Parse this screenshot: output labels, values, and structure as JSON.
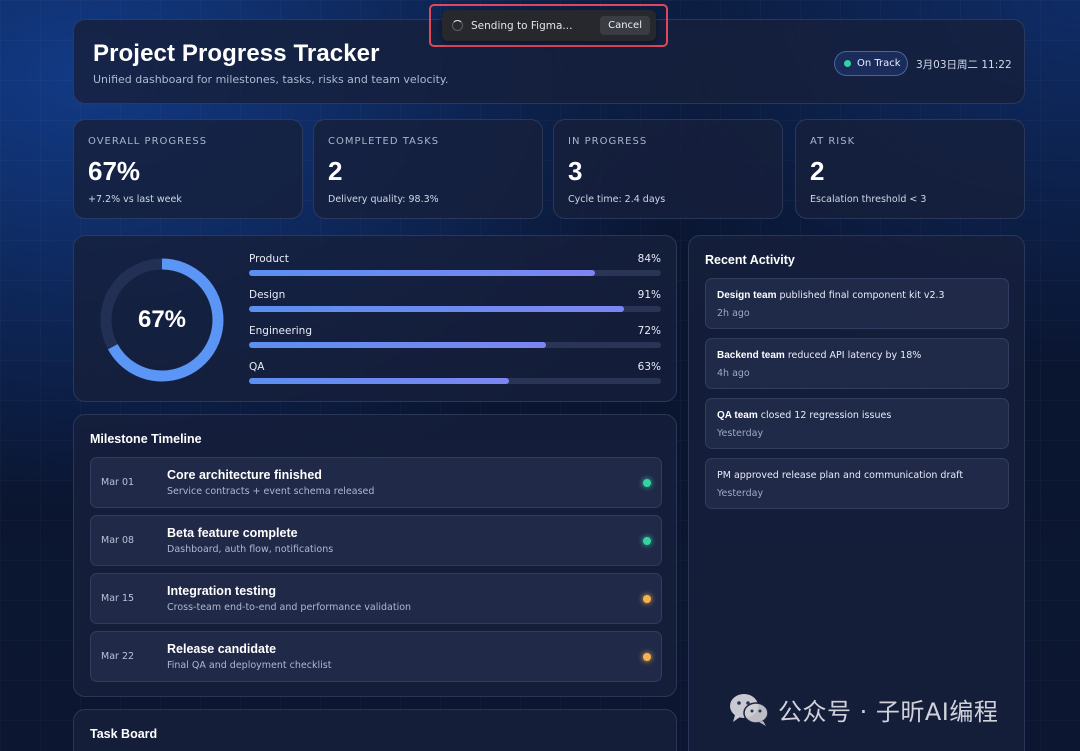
{
  "figma_toast": {
    "message": "Sending to Figma...",
    "cancel_label": "Cancel"
  },
  "header": {
    "title": "Project Progress Tracker",
    "subtitle": "Unified dashboard for milestones, tasks, risks and team velocity.",
    "status": "On Track",
    "datetime": "3月03日周二 11:22"
  },
  "stats": [
    {
      "label": "OVERALL PROGRESS",
      "value": "67%",
      "note": "+7.2% vs last week"
    },
    {
      "label": "COMPLETED TASKS",
      "value": "2",
      "note": "Delivery quality: 98.3%"
    },
    {
      "label": "IN PROGRESS",
      "value": "3",
      "note": "Cycle time: 2.4 days"
    },
    {
      "label": "AT RISK",
      "value": "2",
      "note": "Escalation threshold < 3"
    }
  ],
  "overall": {
    "label": "67%",
    "percent": 67
  },
  "teams": [
    {
      "name": "Product",
      "pct_label": "84%",
      "percent": 84
    },
    {
      "name": "Design",
      "pct_label": "91%",
      "percent": 91
    },
    {
      "name": "Engineering",
      "pct_label": "72%",
      "percent": 72
    },
    {
      "name": "QA",
      "pct_label": "63%",
      "percent": 63
    }
  ],
  "milestones": {
    "title": "Milestone Timeline",
    "items": [
      {
        "date": "Mar 01",
        "name": "Core architecture finished",
        "desc": "Service contracts + event schema released",
        "status_color": "#34d3a3"
      },
      {
        "date": "Mar 08",
        "name": "Beta feature complete",
        "desc": "Dashboard, auth flow, notifications",
        "status_color": "#34d3a3"
      },
      {
        "date": "Mar 15",
        "name": "Integration testing",
        "desc": "Cross-team end-to-end and performance validation",
        "status_color": "#f5b34e"
      },
      {
        "date": "Mar 22",
        "name": "Release candidate",
        "desc": "Final QA and deployment checklist",
        "status_color": "#f5b34e"
      }
    ]
  },
  "task_board": {
    "title": "Task Board"
  },
  "activity": {
    "title": "Recent Activity",
    "items": [
      {
        "actor": "Design team",
        "action": " published final component kit v2.3",
        "time": "2h ago"
      },
      {
        "actor": "Backend team",
        "action": " reduced API latency by 18%",
        "time": "4h ago"
      },
      {
        "actor": "QA team",
        "action": " closed 12 regression issues",
        "time": "Yesterday"
      },
      {
        "actor": "",
        "action": "PM approved release plan and communication draft",
        "time": "Yesterday"
      }
    ]
  },
  "watermark": {
    "text": "公众号 · 子昕AI编程",
    "icon": "wechat-icon"
  }
}
